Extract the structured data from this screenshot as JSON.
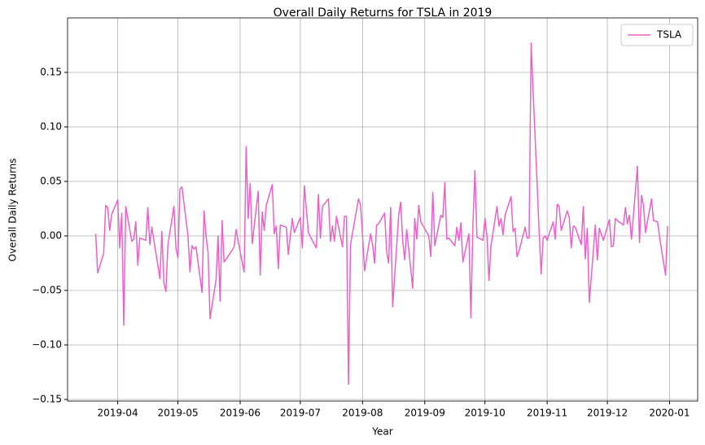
{
  "chart_data": {
    "type": "line",
    "title": "Overall Daily Returns for TSLA in 2019",
    "xlabel": "Year",
    "ylabel": "Overall Daily Returns",
    "x": [
      "2019-03-21",
      "2019-03-22",
      "2019-03-25",
      "2019-03-26",
      "2019-03-27",
      "2019-03-28",
      "2019-03-29",
      "2019-04-01",
      "2019-04-02",
      "2019-04-03",
      "2019-04-04",
      "2019-04-05",
      "2019-04-08",
      "2019-04-09",
      "2019-04-10",
      "2019-04-11",
      "2019-04-12",
      "2019-04-15",
      "2019-04-16",
      "2019-04-17",
      "2019-04-18",
      "2019-04-22",
      "2019-04-23",
      "2019-04-24",
      "2019-04-25",
      "2019-04-26",
      "2019-04-29",
      "2019-04-30",
      "2019-05-01",
      "2019-05-02",
      "2019-05-03",
      "2019-05-06",
      "2019-05-07",
      "2019-05-08",
      "2019-05-09",
      "2019-05-10",
      "2019-05-13",
      "2019-05-14",
      "2019-05-15",
      "2019-05-16",
      "2019-05-17",
      "2019-05-20",
      "2019-05-21",
      "2019-05-22",
      "2019-05-23",
      "2019-05-24",
      "2019-05-28",
      "2019-05-29",
      "2019-05-30",
      "2019-05-31",
      "2019-06-03",
      "2019-06-04",
      "2019-06-05",
      "2019-06-06",
      "2019-06-07",
      "2019-06-10",
      "2019-06-11",
      "2019-06-12",
      "2019-06-13",
      "2019-06-14",
      "2019-06-17",
      "2019-06-18",
      "2019-06-19",
      "2019-06-20",
      "2019-06-21",
      "2019-06-24",
      "2019-06-25",
      "2019-06-26",
      "2019-06-27",
      "2019-06-28",
      "2019-07-01",
      "2019-07-02",
      "2019-07-03",
      "2019-07-05",
      "2019-07-08",
      "2019-07-09",
      "2019-07-10",
      "2019-07-11",
      "2019-07-12",
      "2019-07-15",
      "2019-07-16",
      "2019-07-17",
      "2019-07-18",
      "2019-07-19",
      "2019-07-22",
      "2019-07-23",
      "2019-07-24",
      "2019-07-25",
      "2019-07-26",
      "2019-07-29",
      "2019-07-30",
      "2019-07-31",
      "2019-08-01",
      "2019-08-02",
      "2019-08-05",
      "2019-08-06",
      "2019-08-07",
      "2019-08-08",
      "2019-08-09",
      "2019-08-12",
      "2019-08-13",
      "2019-08-14",
      "2019-08-15",
      "2019-08-16",
      "2019-08-19",
      "2019-08-20",
      "2019-08-21",
      "2019-08-22",
      "2019-08-23",
      "2019-08-26",
      "2019-08-27",
      "2019-08-28",
      "2019-08-29",
      "2019-08-30",
      "2019-09-03",
      "2019-09-04",
      "2019-09-05",
      "2019-09-06",
      "2019-09-09",
      "2019-09-10",
      "2019-09-11",
      "2019-09-12",
      "2019-09-13",
      "2019-09-16",
      "2019-09-17",
      "2019-09-18",
      "2019-09-19",
      "2019-09-20",
      "2019-09-23",
      "2019-09-24",
      "2019-09-25",
      "2019-09-26",
      "2019-09-27",
      "2019-09-30",
      "2019-10-01",
      "2019-10-02",
      "2019-10-03",
      "2019-10-04",
      "2019-10-07",
      "2019-10-08",
      "2019-10-09",
      "2019-10-10",
      "2019-10-11",
      "2019-10-14",
      "2019-10-15",
      "2019-10-16",
      "2019-10-17",
      "2019-10-18",
      "2019-10-21",
      "2019-10-22",
      "2019-10-23",
      "2019-10-24",
      "2019-10-25",
      "2019-10-28",
      "2019-10-29",
      "2019-10-30",
      "2019-10-31",
      "2019-11-01",
      "2019-11-04",
      "2019-11-05",
      "2019-11-06",
      "2019-11-07",
      "2019-11-08",
      "2019-11-11",
      "2019-11-12",
      "2019-11-13",
      "2019-11-14",
      "2019-11-15",
      "2019-11-18",
      "2019-11-19",
      "2019-11-20",
      "2019-11-21",
      "2019-11-22",
      "2019-11-25",
      "2019-11-26",
      "2019-11-27",
      "2019-11-29",
      "2019-12-02",
      "2019-12-03",
      "2019-12-04",
      "2019-12-05",
      "2019-12-06",
      "2019-12-09",
      "2019-12-10",
      "2019-12-11",
      "2019-12-12",
      "2019-12-13",
      "2019-12-16",
      "2019-12-17",
      "2019-12-18",
      "2019-12-19",
      "2019-12-20",
      "2019-12-23",
      "2019-12-24",
      "2019-12-26",
      "2019-12-27",
      "2019-12-30",
      "2019-12-31"
    ],
    "series": [
      {
        "name": "TSLA",
        "color": "#ee5fcc",
        "values": [
          0.002,
          -0.034,
          -0.016,
          0.028,
          0.026,
          0.005,
          0.02,
          0.033,
          -0.011,
          0.021,
          -0.082,
          0.027,
          -0.005,
          -0.003,
          0.013,
          -0.027,
          -0.002,
          -0.004,
          0.026,
          -0.008,
          0.008,
          -0.039,
          0.004,
          -0.043,
          -0.051,
          -0.008,
          0.027,
          -0.011,
          -0.02,
          0.043,
          0.045,
          0.0,
          -0.033,
          -0.009,
          -0.012,
          -0.01,
          -0.052,
          0.023,
          0.0,
          -0.015,
          -0.076,
          -0.04,
          0.0,
          -0.06,
          0.014,
          -0.024,
          -0.013,
          -0.01,
          0.006,
          -0.005,
          -0.033,
          0.082,
          0.016,
          0.048,
          -0.007,
          0.041,
          -0.036,
          0.022,
          0.005,
          0.028,
          0.047,
          0.002,
          0.009,
          -0.03,
          0.01,
          0.008,
          -0.017,
          0.0,
          0.016,
          0.003,
          0.017,
          -0.011,
          0.046,
          0.003,
          -0.008,
          -0.011,
          0.038,
          -0.002,
          0.027,
          0.034,
          -0.005,
          0.009,
          -0.005,
          0.018,
          -0.01,
          0.018,
          0.018,
          -0.136,
          -0.008,
          0.024,
          0.034,
          0.028,
          0.0,
          -0.032,
          0.002,
          -0.008,
          -0.025,
          0.01,
          0.011,
          0.021,
          -0.014,
          -0.025,
          0.026,
          -0.065,
          0.019,
          0.031,
          -0.004,
          -0.022,
          0.006,
          -0.048,
          0.016,
          -0.003,
          0.028,
          0.013,
          0.0,
          -0.019,
          0.04,
          -0.009,
          0.019,
          0.017,
          0.049,
          -0.003,
          -0.002,
          -0.009,
          0.008,
          -0.004,
          0.012,
          -0.024,
          0.002,
          -0.075,
          0.01,
          0.06,
          -0.001,
          -0.004,
          0.016,
          0.0,
          -0.041,
          -0.009,
          0.027,
          0.009,
          0.016,
          0.001,
          0.019,
          0.036,
          0.004,
          0.007,
          -0.019,
          -0.014,
          0.008,
          -0.002,
          -0.002,
          0.177,
          0.133,
          0.004,
          -0.035,
          -0.002,
          0.0,
          -0.004,
          0.013,
          -0.003,
          0.029,
          0.027,
          0.005,
          0.023,
          0.017,
          -0.011,
          0.009,
          0.008,
          -0.008,
          0.027,
          -0.021,
          0.007,
          -0.061,
          0.01,
          -0.022,
          0.007,
          -0.004,
          0.015,
          -0.01,
          -0.009,
          0.016,
          0.014,
          0.01,
          0.026,
          0.011,
          0.019,
          -0.003,
          0.064,
          -0.006,
          0.037,
          0.028,
          0.003,
          0.034,
          0.014,
          0.013,
          -0.001,
          -0.036,
          0.009
        ]
      }
    ],
    "xlim": [
      "2019-03-07",
      "2020-01-15"
    ],
    "xticks": [
      {
        "value": "2019-04-01",
        "label": "2019-04"
      },
      {
        "value": "2019-05-01",
        "label": "2019-05"
      },
      {
        "value": "2019-06-01",
        "label": "2019-06"
      },
      {
        "value": "2019-07-01",
        "label": "2019-07"
      },
      {
        "value": "2019-08-01",
        "label": "2019-08"
      },
      {
        "value": "2019-09-01",
        "label": "2019-09"
      },
      {
        "value": "2019-10-01",
        "label": "2019-10"
      },
      {
        "value": "2019-11-01",
        "label": "2019-11"
      },
      {
        "value": "2019-12-01",
        "label": "2019-12"
      },
      {
        "value": "2020-01-01",
        "label": "2020-01"
      }
    ],
    "ylim": [
      -0.1515,
      0.2
    ],
    "yticks": [
      {
        "value": -0.15,
        "label": "−0.15"
      },
      {
        "value": -0.1,
        "label": "−0.10"
      },
      {
        "value": -0.05,
        "label": "−0.05"
      },
      {
        "value": 0,
        "label": "0.00"
      },
      {
        "value": 0.05,
        "label": "0.05"
      },
      {
        "value": 0.1,
        "label": "0.10"
      },
      {
        "value": 0.15,
        "label": "0.15"
      }
    ],
    "grid": true,
    "legend": "upper right"
  }
}
